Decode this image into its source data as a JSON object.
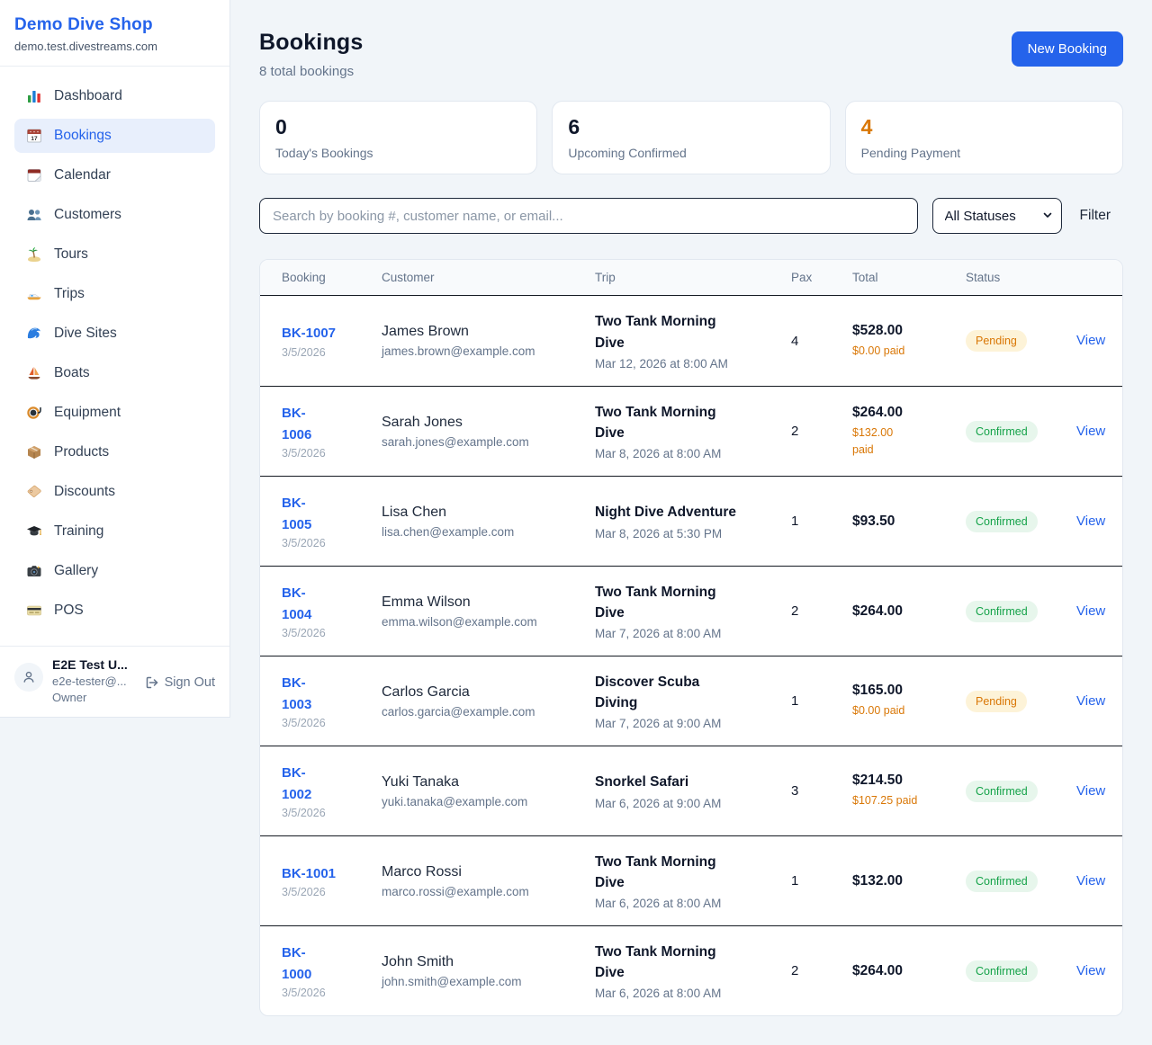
{
  "sidebar": {
    "shop_name": "Demo Dive Shop",
    "domain": "demo.test.divestreams.com",
    "items": [
      {
        "label": "Dashboard",
        "icon": "bar-chart-icon",
        "active": false
      },
      {
        "label": "Bookings",
        "icon": "calendar-date-icon",
        "active": true
      },
      {
        "label": "Calendar",
        "icon": "tear-calendar-icon",
        "active": false
      },
      {
        "label": "Customers",
        "icon": "people-icon",
        "active": false
      },
      {
        "label": "Tours",
        "icon": "island-icon",
        "active": false
      },
      {
        "label": "Trips",
        "icon": "speedboat-icon",
        "active": false
      },
      {
        "label": "Dive Sites",
        "icon": "wave-icon",
        "active": false
      },
      {
        "label": "Boats",
        "icon": "sailboat-icon",
        "active": false
      },
      {
        "label": "Equipment",
        "icon": "dive-mask-icon",
        "active": false
      },
      {
        "label": "Products",
        "icon": "package-icon",
        "active": false
      },
      {
        "label": "Discounts",
        "icon": "tag-icon",
        "active": false
      },
      {
        "label": "Training",
        "icon": "grad-cap-icon",
        "active": false
      },
      {
        "label": "Gallery",
        "icon": "camera-icon",
        "active": false
      },
      {
        "label": "POS",
        "icon": "credit-card-icon",
        "active": false
      }
    ],
    "user": {
      "name": "E2E Test U...",
      "email": "e2e-tester@...",
      "role": "Owner",
      "sign_out_label": "Sign Out"
    }
  },
  "header": {
    "title": "Bookings",
    "subtitle": "8 total bookings",
    "new_booking_label": "New Booking"
  },
  "stats": [
    {
      "value": "0",
      "label": "Today's Bookings",
      "color": "#0f172a"
    },
    {
      "value": "6",
      "label": "Upcoming Confirmed",
      "color": "#0f172a"
    },
    {
      "value": "4",
      "label": "Pending Payment",
      "color": "#d97706"
    }
  ],
  "filters": {
    "search_placeholder": "Search by booking #, customer name, or email...",
    "status_selected": "All Statuses",
    "filter_label": "Filter"
  },
  "table": {
    "columns": [
      "Booking",
      "Customer",
      "Trip",
      "Pax",
      "Total",
      "Status"
    ],
    "view_label": "View",
    "rows": [
      {
        "booking_id": "BK-1007",
        "id_wrap": false,
        "date": "3/5/2026",
        "customer": "James Brown",
        "email": "james.brown@example.com",
        "trip": "Two Tank Morning Dive",
        "trip_time": "Mar 12, 2026 at 8:00 AM",
        "pax": "4",
        "total": "$528.00",
        "paid": "$0.00 paid",
        "paid_wrap": false,
        "status": "Pending"
      },
      {
        "booking_id": "BK-1006",
        "id_wrap": true,
        "date": "3/5/2026",
        "customer": "Sarah Jones",
        "email": "sarah.jones@example.com",
        "trip": "Two Tank Morning Dive",
        "trip_time": "Mar 8, 2026 at 8:00 AM",
        "pax": "2",
        "total": "$264.00",
        "paid": "$132.00 paid",
        "paid_wrap": true,
        "status": "Confirmed"
      },
      {
        "booking_id": "BK-1005",
        "id_wrap": true,
        "date": "3/5/2026",
        "customer": "Lisa Chen",
        "email": "lisa.chen@example.com",
        "trip": "Night Dive Adventure",
        "trip_time": "Mar 8, 2026 at 5:30 PM",
        "pax": "1",
        "total": "$93.50",
        "paid": null,
        "paid_wrap": false,
        "status": "Confirmed"
      },
      {
        "booking_id": "BK-1004",
        "id_wrap": true,
        "date": "3/5/2026",
        "customer": "Emma Wilson",
        "email": "emma.wilson@example.com",
        "trip": "Two Tank Morning Dive",
        "trip_time": "Mar 7, 2026 at 8:00 AM",
        "pax": "2",
        "total": "$264.00",
        "paid": null,
        "paid_wrap": false,
        "status": "Confirmed"
      },
      {
        "booking_id": "BK-1003",
        "id_wrap": true,
        "date": "3/5/2026",
        "customer": "Carlos Garcia",
        "email": "carlos.garcia@example.com",
        "trip": "Discover Scuba Diving",
        "trip_time": "Mar 7, 2026 at 9:00 AM",
        "pax": "1",
        "total": "$165.00",
        "paid": "$0.00 paid",
        "paid_wrap": false,
        "status": "Pending"
      },
      {
        "booking_id": "BK-1002",
        "id_wrap": true,
        "date": "3/5/2026",
        "customer": "Yuki Tanaka",
        "email": "yuki.tanaka@example.com",
        "trip": "Snorkel Safari",
        "trip_time": "Mar 6, 2026 at 9:00 AM",
        "pax": "3",
        "total": "$214.50",
        "paid": "$107.25 paid",
        "paid_wrap": false,
        "status": "Confirmed"
      },
      {
        "booking_id": "BK-1001",
        "id_wrap": false,
        "date": "3/5/2026",
        "customer": "Marco Rossi",
        "email": "marco.rossi@example.com",
        "trip": "Two Tank Morning Dive",
        "trip_time": "Mar 6, 2026 at 8:00 AM",
        "pax": "1",
        "total": "$132.00",
        "paid": null,
        "paid_wrap": false,
        "status": "Confirmed"
      },
      {
        "booking_id": "BK-1000",
        "id_wrap": true,
        "date": "3/5/2026",
        "customer": "John Smith",
        "email": "john.smith@example.com",
        "trip": "Two Tank Morning Dive",
        "trip_time": "Mar 6, 2026 at 8:00 AM",
        "pax": "2",
        "total": "$264.00",
        "paid": null,
        "paid_wrap": false,
        "status": "Confirmed"
      }
    ]
  },
  "colors": {
    "accent": "#2563eb",
    "pending_text": "#d97706",
    "pending_bg": "#fdf3d8",
    "confirmed_text": "#16a34a",
    "confirmed_bg": "#e7f6ec",
    "page_bg": "#f1f5f9"
  }
}
